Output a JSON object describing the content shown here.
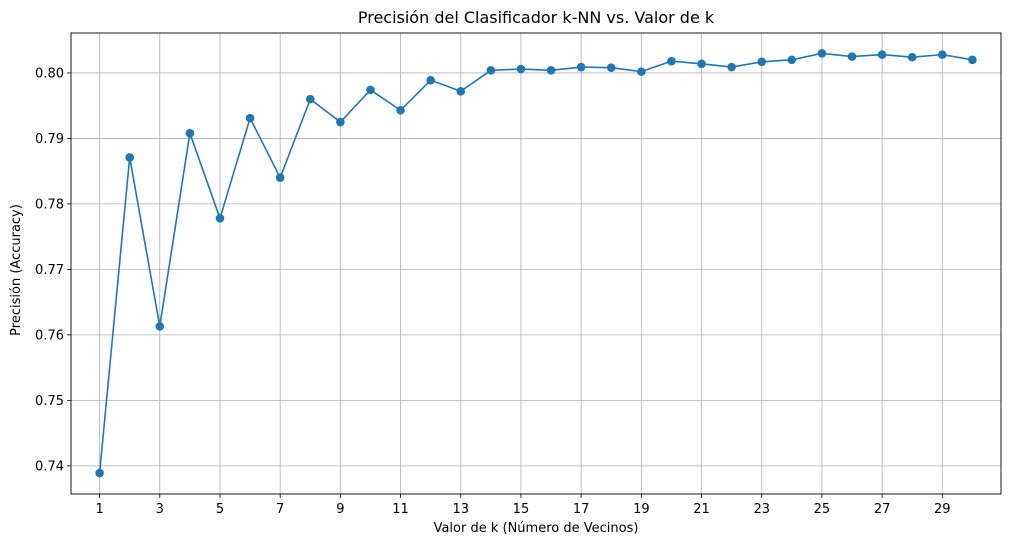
{
  "chart_data": {
    "type": "line",
    "title": "Precisión del Clasificador k-NN vs. Valor de k",
    "xlabel": "Valor de k (Número de Vecinos)",
    "ylabel": "Precisión (Accuracy)",
    "xlim": [
      0.05,
      30.95
    ],
    "ylim": [
      0.7357,
      0.8061
    ],
    "xticks": [
      1,
      3,
      5,
      7,
      9,
      11,
      13,
      15,
      17,
      19,
      21,
      23,
      25,
      27,
      29
    ],
    "yticks": [
      0.74,
      0.75,
      0.76,
      0.77,
      0.78,
      0.79,
      0.8
    ],
    "ytick_labels": [
      "0.74",
      "0.75",
      "0.76",
      "0.77",
      "0.78",
      "0.79",
      "0.80"
    ],
    "grid": true,
    "marker": "circle",
    "color": "#1f77b4",
    "series": [
      {
        "x": [
          1,
          2,
          3,
          4,
          5,
          6,
          7,
          8,
          9,
          10,
          11,
          12,
          13,
          14,
          15,
          16,
          17,
          18,
          19,
          20,
          21,
          22,
          23,
          24,
          25,
          26,
          27,
          28,
          29,
          30
        ],
        "values": [
          0.7389,
          0.7871,
          0.7613,
          0.7908,
          0.7778,
          0.7931,
          0.784,
          0.796,
          0.7925,
          0.7974,
          0.7943,
          0.7989,
          0.7972,
          0.8004,
          0.8006,
          0.8004,
          0.8009,
          0.8008,
          0.8002,
          0.8018,
          0.8014,
          0.8009,
          0.8017,
          0.802,
          0.803,
          0.8025,
          0.8028,
          0.8024,
          0.8028,
          0.802
        ]
      }
    ]
  }
}
